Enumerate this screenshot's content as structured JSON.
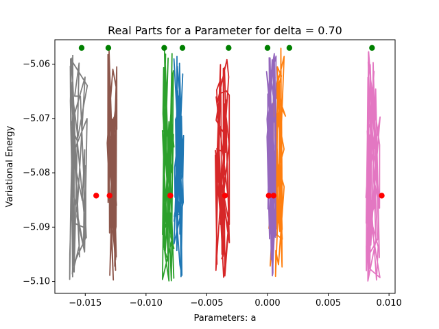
{
  "chart_data": {
    "type": "line",
    "title": "Real Parts for a Parameter for delta = 0.70",
    "xlabel": "Parameters: a",
    "ylabel": "Variational Energy",
    "xlim": [
      -0.0175,
      0.0105
    ],
    "ylim": [
      -5.1022,
      -5.0555
    ],
    "x_ticks": [
      -0.015,
      -0.01,
      -0.005,
      0.0,
      0.005,
      0.01
    ],
    "x_tick_labels": [
      "−0.015",
      "−0.010",
      "−0.005",
      "0.000",
      "0.005",
      "0.010"
    ],
    "y_ticks": [
      -5.06,
      -5.07,
      -5.08,
      -5.09,
      -5.1
    ],
    "y_tick_labels": [
      "−5.06",
      "−5.07",
      "−5.08",
      "−5.09",
      "−5.10"
    ],
    "grid": false,
    "series": [
      {
        "color": "#7f7f7f",
        "center": -0.0155,
        "spread": 0.0008,
        "y_range": [
          -5.1,
          -5.057
        ],
        "start_point": -0.0153,
        "end_point": -0.0141
      },
      {
        "color": "#8c564b",
        "center": -0.0128,
        "spread": 0.0004,
        "y_range": [
          -5.1,
          -5.057
        ],
        "start_point": -0.0131,
        "end_point": -0.013
      },
      {
        "color": "#2ca02c",
        "center": -0.0082,
        "spread": 0.0005,
        "y_range": [
          -5.1,
          -5.057
        ],
        "start_point": -0.0085,
        "end_point": -0.008
      },
      {
        "color": "#1f77b4",
        "center": -0.0073,
        "spread": 0.0004,
        "y_range": [
          -5.0995,
          -5.057
        ],
        "start_point": -0.007,
        "end_point": -0.008
      },
      {
        "color": "#d62728",
        "center": -0.0037,
        "spread": 0.0006,
        "y_range": [
          -5.1,
          -5.057
        ],
        "start_point": -0.0032,
        "end_point": -0.0035
      },
      {
        "color": "#ff7f0e",
        "center": 0.0008,
        "spread": 0.0007,
        "y_range": [
          -5.1,
          -5.057
        ],
        "start_point": 0.0018,
        "end_point": 0.0001
      },
      {
        "color": "#9467bd",
        "center": 0.0003,
        "spread": 0.0004,
        "y_range": [
          -5.1,
          -5.057
        ],
        "start_point": 0.0,
        "end_point": 0.0005
      },
      {
        "color": "#e377c2",
        "center": 0.0087,
        "spread": 0.0006,
        "y_range": [
          -5.1,
          -5.057
        ],
        "start_point": 0.0086,
        "end_point": 0.0094
      }
    ],
    "start_y": -5.057,
    "end_y": -5.0842,
    "start_marker_color": "#008000",
    "end_marker_color": "#ff0000"
  }
}
